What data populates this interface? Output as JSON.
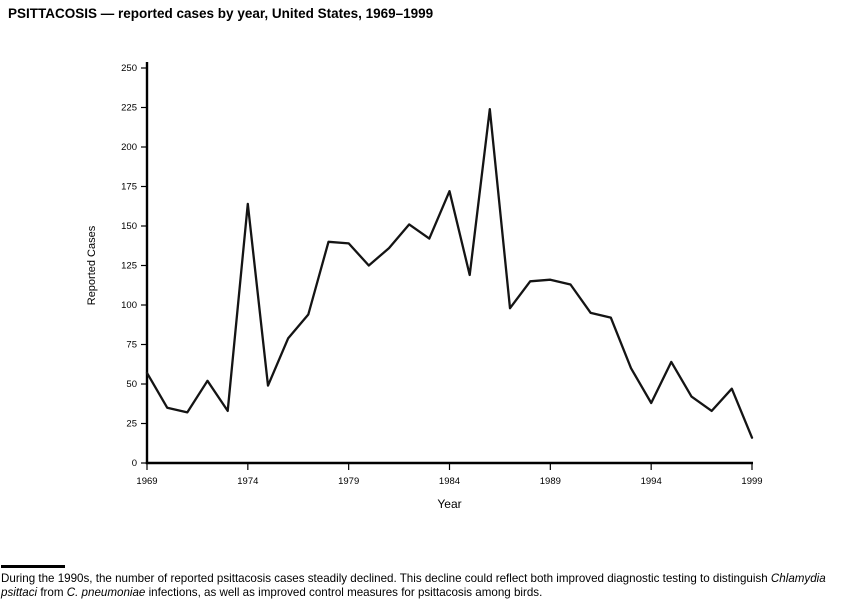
{
  "chart_data": {
    "type": "line",
    "title": "PSITTACOSIS — reported cases by year, United States, 1969–1999",
    "xlabel": "Year",
    "ylabel": "Reported Cases",
    "ylim": [
      0,
      250
    ],
    "ytick_interval": 25,
    "xticks": [
      1969,
      1974,
      1979,
      1984,
      1989,
      1994,
      1999
    ],
    "grid": false,
    "legend": "none",
    "line_color": "#141414",
    "x": [
      1969,
      1970,
      1971,
      1972,
      1973,
      1974,
      1975,
      1976,
      1977,
      1978,
      1979,
      1980,
      1981,
      1982,
      1983,
      1984,
      1985,
      1986,
      1987,
      1988,
      1989,
      1990,
      1991,
      1992,
      1993,
      1994,
      1995,
      1996,
      1997,
      1998,
      1999
    ],
    "values": [
      57,
      35,
      32,
      52,
      33,
      164,
      49,
      79,
      94,
      140,
      139,
      125,
      136,
      151,
      142,
      172,
      119,
      224,
      98,
      115,
      116,
      113,
      95,
      92,
      60,
      38,
      64,
      42,
      33,
      47,
      16
    ]
  },
  "footnote": {
    "segments": [
      {
        "text": "During the 1990s, the number of reported psittacosis cases steadily declined. This decline could reflect both improved diagnostic testing to distinguish ",
        "italic": false
      },
      {
        "text": "Chlamydia psittaci",
        "italic": true
      },
      {
        "text": " from ",
        "italic": false
      },
      {
        "text": "C. pneumoniae",
        "italic": true
      },
      {
        "text": " infections, as well as improved control measures for psittacosis among birds.",
        "italic": false
      }
    ]
  }
}
